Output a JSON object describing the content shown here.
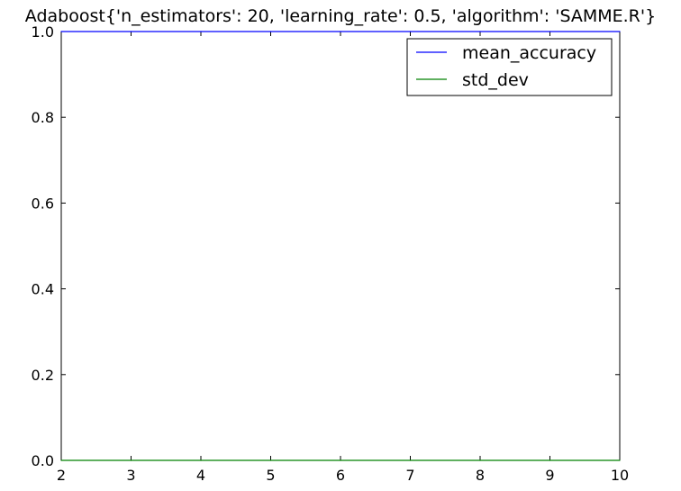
{
  "chart_data": {
    "type": "line",
    "title": "Adaboost{'n_estimators': 20, 'learning_rate': 0.5, 'algorithm': 'SAMME.R'}",
    "xlabel": "",
    "ylabel": "",
    "xlim": [
      2,
      10
    ],
    "ylim": [
      0.0,
      1.0
    ],
    "x_ticks": [
      "2",
      "3",
      "4",
      "5",
      "6",
      "7",
      "8",
      "9",
      "10"
    ],
    "y_ticks": [
      "0.0",
      "0.2",
      "0.4",
      "0.6",
      "0.8",
      "1.0"
    ],
    "grid": false,
    "legend_position": "top-right",
    "x": [
      2,
      3,
      4,
      5,
      6,
      7,
      8,
      9,
      10
    ],
    "series": [
      {
        "name": "mean_accuracy",
        "color": "#0000ff",
        "values": [
          1.0,
          1.0,
          1.0,
          1.0,
          1.0,
          1.0,
          1.0,
          1.0,
          1.0
        ]
      },
      {
        "name": "std_dev",
        "color": "#008000",
        "values": [
          0.0,
          0.0,
          0.0,
          0.0,
          0.0,
          0.0,
          0.0,
          0.0,
          0.0
        ]
      }
    ]
  }
}
